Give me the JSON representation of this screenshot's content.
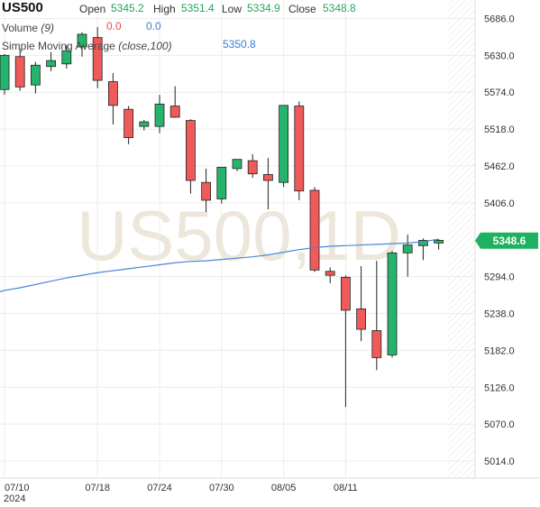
{
  "header": {
    "symbol": "US500",
    "open_label": "Open",
    "open_value": "5345.2",
    "high_label": "High",
    "high_value": "5351.4",
    "low_label": "Low",
    "low_value": "5334.9",
    "close_label": "Close",
    "close_value": "5348.8",
    "volume_label": "Volume",
    "volume_param": "(9)",
    "volume_value_1": "0.0",
    "volume_value_2": "0.0",
    "sma_label": "Simple Moving Average",
    "sma_param": "(close,100)",
    "sma_value": "5350.8"
  },
  "watermark": "US500,1D",
  "colors": {
    "up": "#26b36b",
    "down": "#ef5a5a",
    "sma": "#4a86d8",
    "price_tag": "#1eb15f",
    "grid": "#ececec"
  },
  "chart_data": {
    "type": "candlestick",
    "y_ticks": [
      "5686.0",
      "5630.0",
      "5574.0",
      "5518.0",
      "5462.0",
      "5406.0",
      "5294.0",
      "5238.0",
      "5182.0",
      "5126.0",
      "5070.0",
      "5014.0"
    ],
    "y_range": [
      4988,
      5714
    ],
    "x_tick_labels": [
      {
        "label": "07/10",
        "index": 0
      },
      {
        "label": "07/18",
        "index": 6
      },
      {
        "label": "07/24",
        "index": 10
      },
      {
        "label": "07/30",
        "index": 14
      },
      {
        "label": "08/05",
        "index": 18
      },
      {
        "label": "08/11",
        "index": 22
      }
    ],
    "year_label": "2024",
    "last_price": "5348.6",
    "candles": [
      {
        "o": 5578,
        "h": 5632,
        "l": 5570,
        "c": 5630
      },
      {
        "o": 5628,
        "h": 5640,
        "l": 5576,
        "c": 5582
      },
      {
        "o": 5585,
        "h": 5620,
        "l": 5572,
        "c": 5615
      },
      {
        "o": 5613,
        "h": 5635,
        "l": 5606,
        "c": 5622
      },
      {
        "o": 5617,
        "h": 5645,
        "l": 5610,
        "c": 5637
      },
      {
        "o": 5643,
        "h": 5665,
        "l": 5628,
        "c": 5662
      },
      {
        "o": 5657,
        "h": 5673,
        "l": 5580,
        "c": 5592
      },
      {
        "o": 5590,
        "h": 5603,
        "l": 5525,
        "c": 5554
      },
      {
        "o": 5548,
        "h": 5553,
        "l": 5495,
        "c": 5505
      },
      {
        "o": 5522,
        "h": 5532,
        "l": 5516,
        "c": 5529
      },
      {
        "o": 5522,
        "h": 5570,
        "l": 5512,
        "c": 5556
      },
      {
        "o": 5553,
        "h": 5583,
        "l": 5535,
        "c": 5536
      },
      {
        "o": 5531,
        "h": 5533,
        "l": 5420,
        "c": 5440
      },
      {
        "o": 5437,
        "h": 5458,
        "l": 5392,
        "c": 5410
      },
      {
        "o": 5412,
        "h": 5460,
        "l": 5405,
        "c": 5460
      },
      {
        "o": 5458,
        "h": 5472,
        "l": 5454,
        "c": 5472
      },
      {
        "o": 5470,
        "h": 5480,
        "l": 5444,
        "c": 5450
      },
      {
        "o": 5449,
        "h": 5474,
        "l": 5396,
        "c": 5440
      },
      {
        "o": 5437,
        "h": 5554,
        "l": 5430,
        "c": 5554
      },
      {
        "o": 5553,
        "h": 5560,
        "l": 5410,
        "c": 5424
      },
      {
        "o": 5425,
        "h": 5430,
        "l": 5301,
        "c": 5304
      },
      {
        "o": 5302,
        "h": 5308,
        "l": 5284,
        "c": 5296
      },
      {
        "o": 5293,
        "h": 5296,
        "l": 5096,
        "c": 5243
      },
      {
        "o": 5245,
        "h": 5310,
        "l": 5196,
        "c": 5214
      },
      {
        "o": 5212,
        "h": 5318,
        "l": 5152,
        "c": 5171
      },
      {
        "o": 5175,
        "h": 5333,
        "l": 5171,
        "c": 5330
      },
      {
        "o": 5330,
        "h": 5358,
        "l": 5294,
        "c": 5342
      },
      {
        "o": 5341,
        "h": 5352,
        "l": 5319,
        "c": 5349
      },
      {
        "o": 5345,
        "h": 5351,
        "l": 5335,
        "c": 5349
      }
    ],
    "sma_points": [
      [
        0,
        5273
      ],
      [
        1,
        5277
      ],
      [
        2,
        5282
      ],
      [
        3,
        5287
      ],
      [
        4,
        5292
      ],
      [
        5,
        5296
      ],
      [
        6,
        5300
      ],
      [
        7,
        5303
      ],
      [
        8,
        5306
      ],
      [
        9,
        5309
      ],
      [
        10,
        5312
      ],
      [
        11,
        5315
      ],
      [
        12,
        5317
      ],
      [
        13,
        5318
      ],
      [
        14,
        5320
      ],
      [
        15,
        5322
      ],
      [
        16,
        5324
      ],
      [
        17,
        5327
      ],
      [
        18,
        5331
      ],
      [
        19,
        5335
      ],
      [
        20,
        5338
      ],
      [
        21,
        5340
      ],
      [
        22,
        5341
      ],
      [
        23,
        5342
      ],
      [
        24,
        5343
      ],
      [
        25,
        5344
      ],
      [
        26,
        5345
      ],
      [
        27,
        5347
      ],
      [
        28,
        5350.8
      ]
    ]
  }
}
